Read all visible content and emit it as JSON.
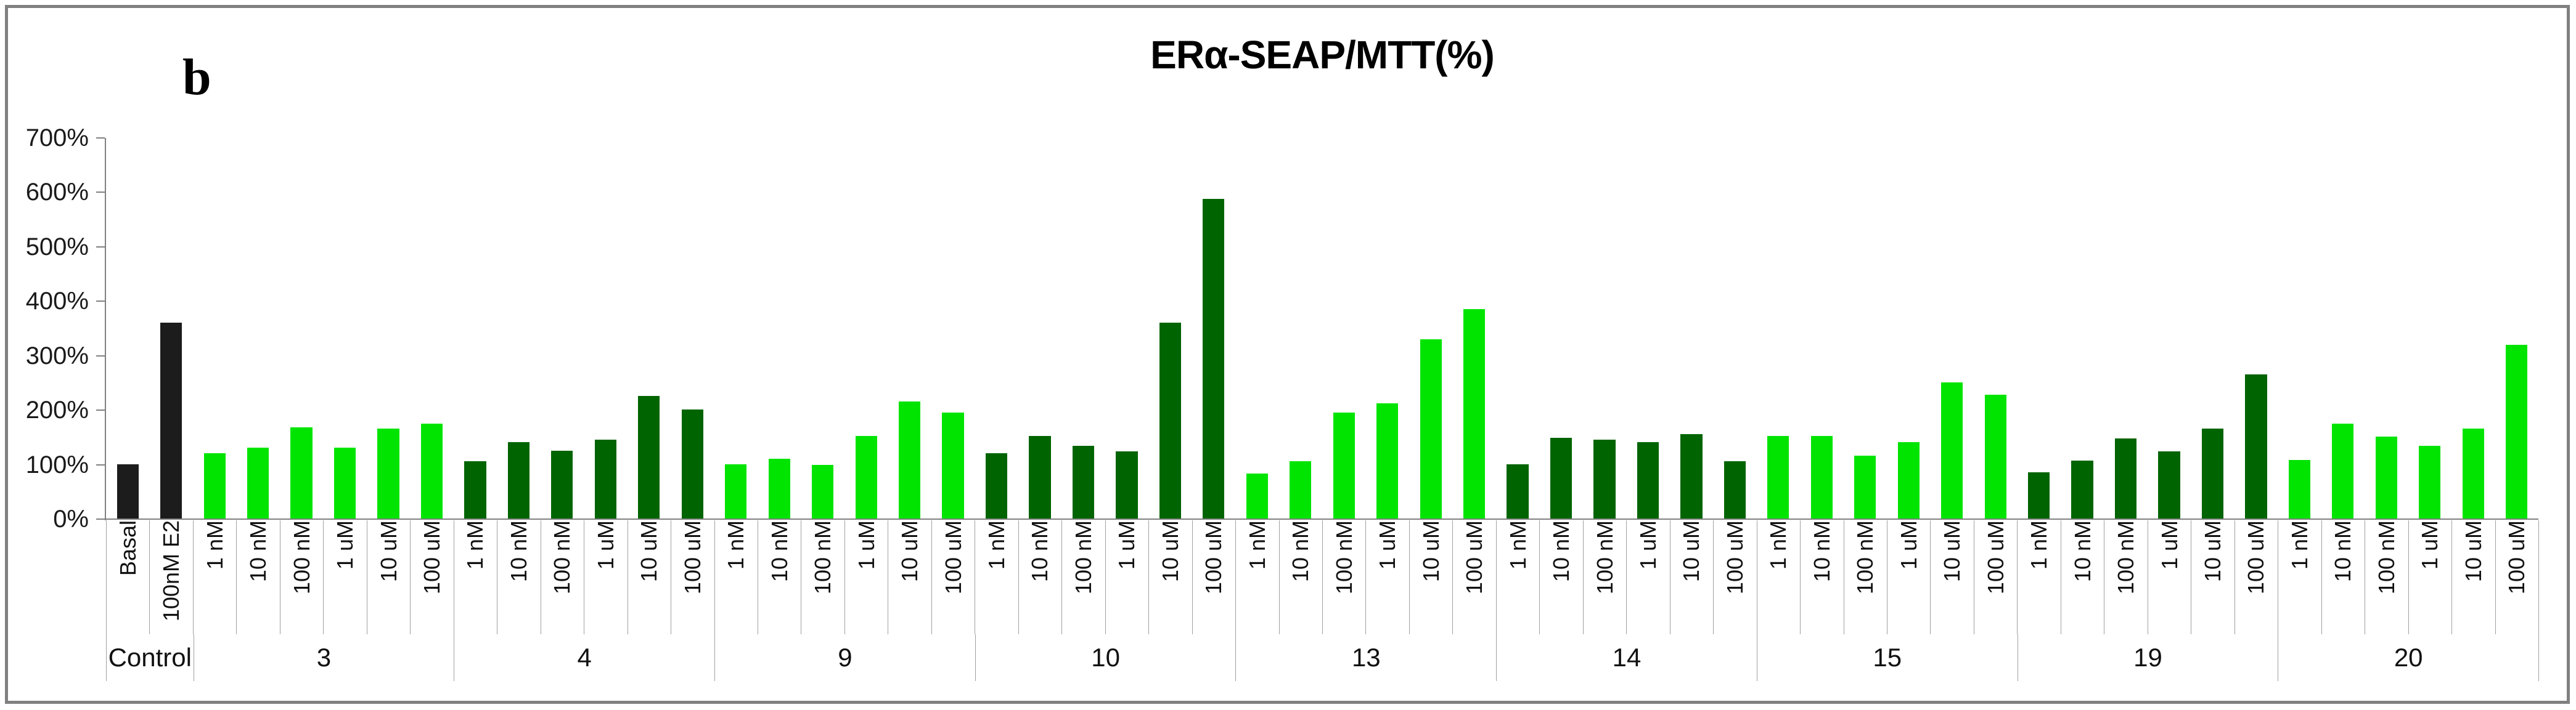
{
  "chart_data": {
    "type": "bar",
    "title": "ERα-SEAP/MTT(%)",
    "panel_label": "b",
    "ylabel": "",
    "xlabel": "",
    "ylim": [
      0,
      700
    ],
    "y_tick_labels": [
      "700%",
      "600%",
      "500%",
      "400%",
      "300%",
      "200%",
      "100%",
      "0%"
    ],
    "grid": "off",
    "legend": "none",
    "value_unit": "%",
    "bar_colors": {
      "control": "#1c1c1c",
      "bright_green": "#00e400",
      "dark_green": "#006400"
    },
    "groups": [
      {
        "label": "Control",
        "color_key": "control",
        "bars": [
          {
            "label": "Basal",
            "value": 100
          },
          {
            "label": "100nM E2",
            "value": 360
          }
        ]
      },
      {
        "label": "3",
        "color_key": "bright_green",
        "bars": [
          {
            "label": "1 nM",
            "value": 120
          },
          {
            "label": "10 nM",
            "value": 130
          },
          {
            "label": "100 nM",
            "value": 168
          },
          {
            "label": "1 uM",
            "value": 130
          },
          {
            "label": "10 uM",
            "value": 165
          },
          {
            "label": "100 uM",
            "value": 175
          }
        ]
      },
      {
        "label": "4",
        "color_key": "dark_green",
        "bars": [
          {
            "label": "1 nM",
            "value": 105
          },
          {
            "label": "10 nM",
            "value": 140
          },
          {
            "label": "100 nM",
            "value": 125
          },
          {
            "label": "1 uM",
            "value": 145
          },
          {
            "label": "10 uM",
            "value": 225
          },
          {
            "label": "100 uM",
            "value": 200
          }
        ]
      },
      {
        "label": "9",
        "color_key": "bright_green",
        "bars": [
          {
            "label": "1 nM",
            "value": 100
          },
          {
            "label": "10 nM",
            "value": 110
          },
          {
            "label": "100 nM",
            "value": 98
          },
          {
            "label": "1 uM",
            "value": 152
          },
          {
            "label": "10 uM",
            "value": 215
          },
          {
            "label": "100 uM",
            "value": 195
          }
        ]
      },
      {
        "label": "10",
        "color_key": "dark_green",
        "bars": [
          {
            "label": "1 nM",
            "value": 120
          },
          {
            "label": "10 nM",
            "value": 152
          },
          {
            "label": "100 nM",
            "value": 134
          },
          {
            "label": "1 uM",
            "value": 124
          },
          {
            "label": "10 uM",
            "value": 360
          },
          {
            "label": "100 uM",
            "value": 588
          }
        ]
      },
      {
        "label": "13",
        "color_key": "bright_green",
        "bars": [
          {
            "label": "1 nM",
            "value": 83
          },
          {
            "label": "10 nM",
            "value": 105
          },
          {
            "label": "100 nM",
            "value": 195
          },
          {
            "label": "1 uM",
            "value": 212
          },
          {
            "label": "10 uM",
            "value": 330
          },
          {
            "label": "100 uM",
            "value": 385
          }
        ]
      },
      {
        "label": "14",
        "color_key": "dark_green",
        "bars": [
          {
            "label": "1 nM",
            "value": 100
          },
          {
            "label": "10 nM",
            "value": 148
          },
          {
            "label": "100 nM",
            "value": 145
          },
          {
            "label": "1 uM",
            "value": 140
          },
          {
            "label": "10 uM",
            "value": 155
          },
          {
            "label": "100 uM",
            "value": 105
          }
        ]
      },
      {
        "label": "15",
        "color_key": "bright_green",
        "bars": [
          {
            "label": "1 nM",
            "value": 152
          },
          {
            "label": "10 nM",
            "value": 152
          },
          {
            "label": "100 nM",
            "value": 115
          },
          {
            "label": "1 uM",
            "value": 140
          },
          {
            "label": "10 uM",
            "value": 250
          },
          {
            "label": "100 uM",
            "value": 228
          }
        ]
      },
      {
        "label": "19",
        "color_key": "dark_green",
        "bars": [
          {
            "label": "1 nM",
            "value": 85
          },
          {
            "label": "10 nM",
            "value": 107
          },
          {
            "label": "100 nM",
            "value": 147
          },
          {
            "label": "1 uM",
            "value": 124
          },
          {
            "label": "10 uM",
            "value": 165
          },
          {
            "label": "100 uM",
            "value": 265
          }
        ]
      },
      {
        "label": "20",
        "color_key": "bright_green",
        "bars": [
          {
            "label": "1 nM",
            "value": 108
          },
          {
            "label": "10 nM",
            "value": 175
          },
          {
            "label": "100 nM",
            "value": 151
          },
          {
            "label": "1 uM",
            "value": 134
          },
          {
            "label": "10 uM",
            "value": 165
          },
          {
            "label": "100 uM",
            "value": 320
          }
        ]
      }
    ]
  }
}
